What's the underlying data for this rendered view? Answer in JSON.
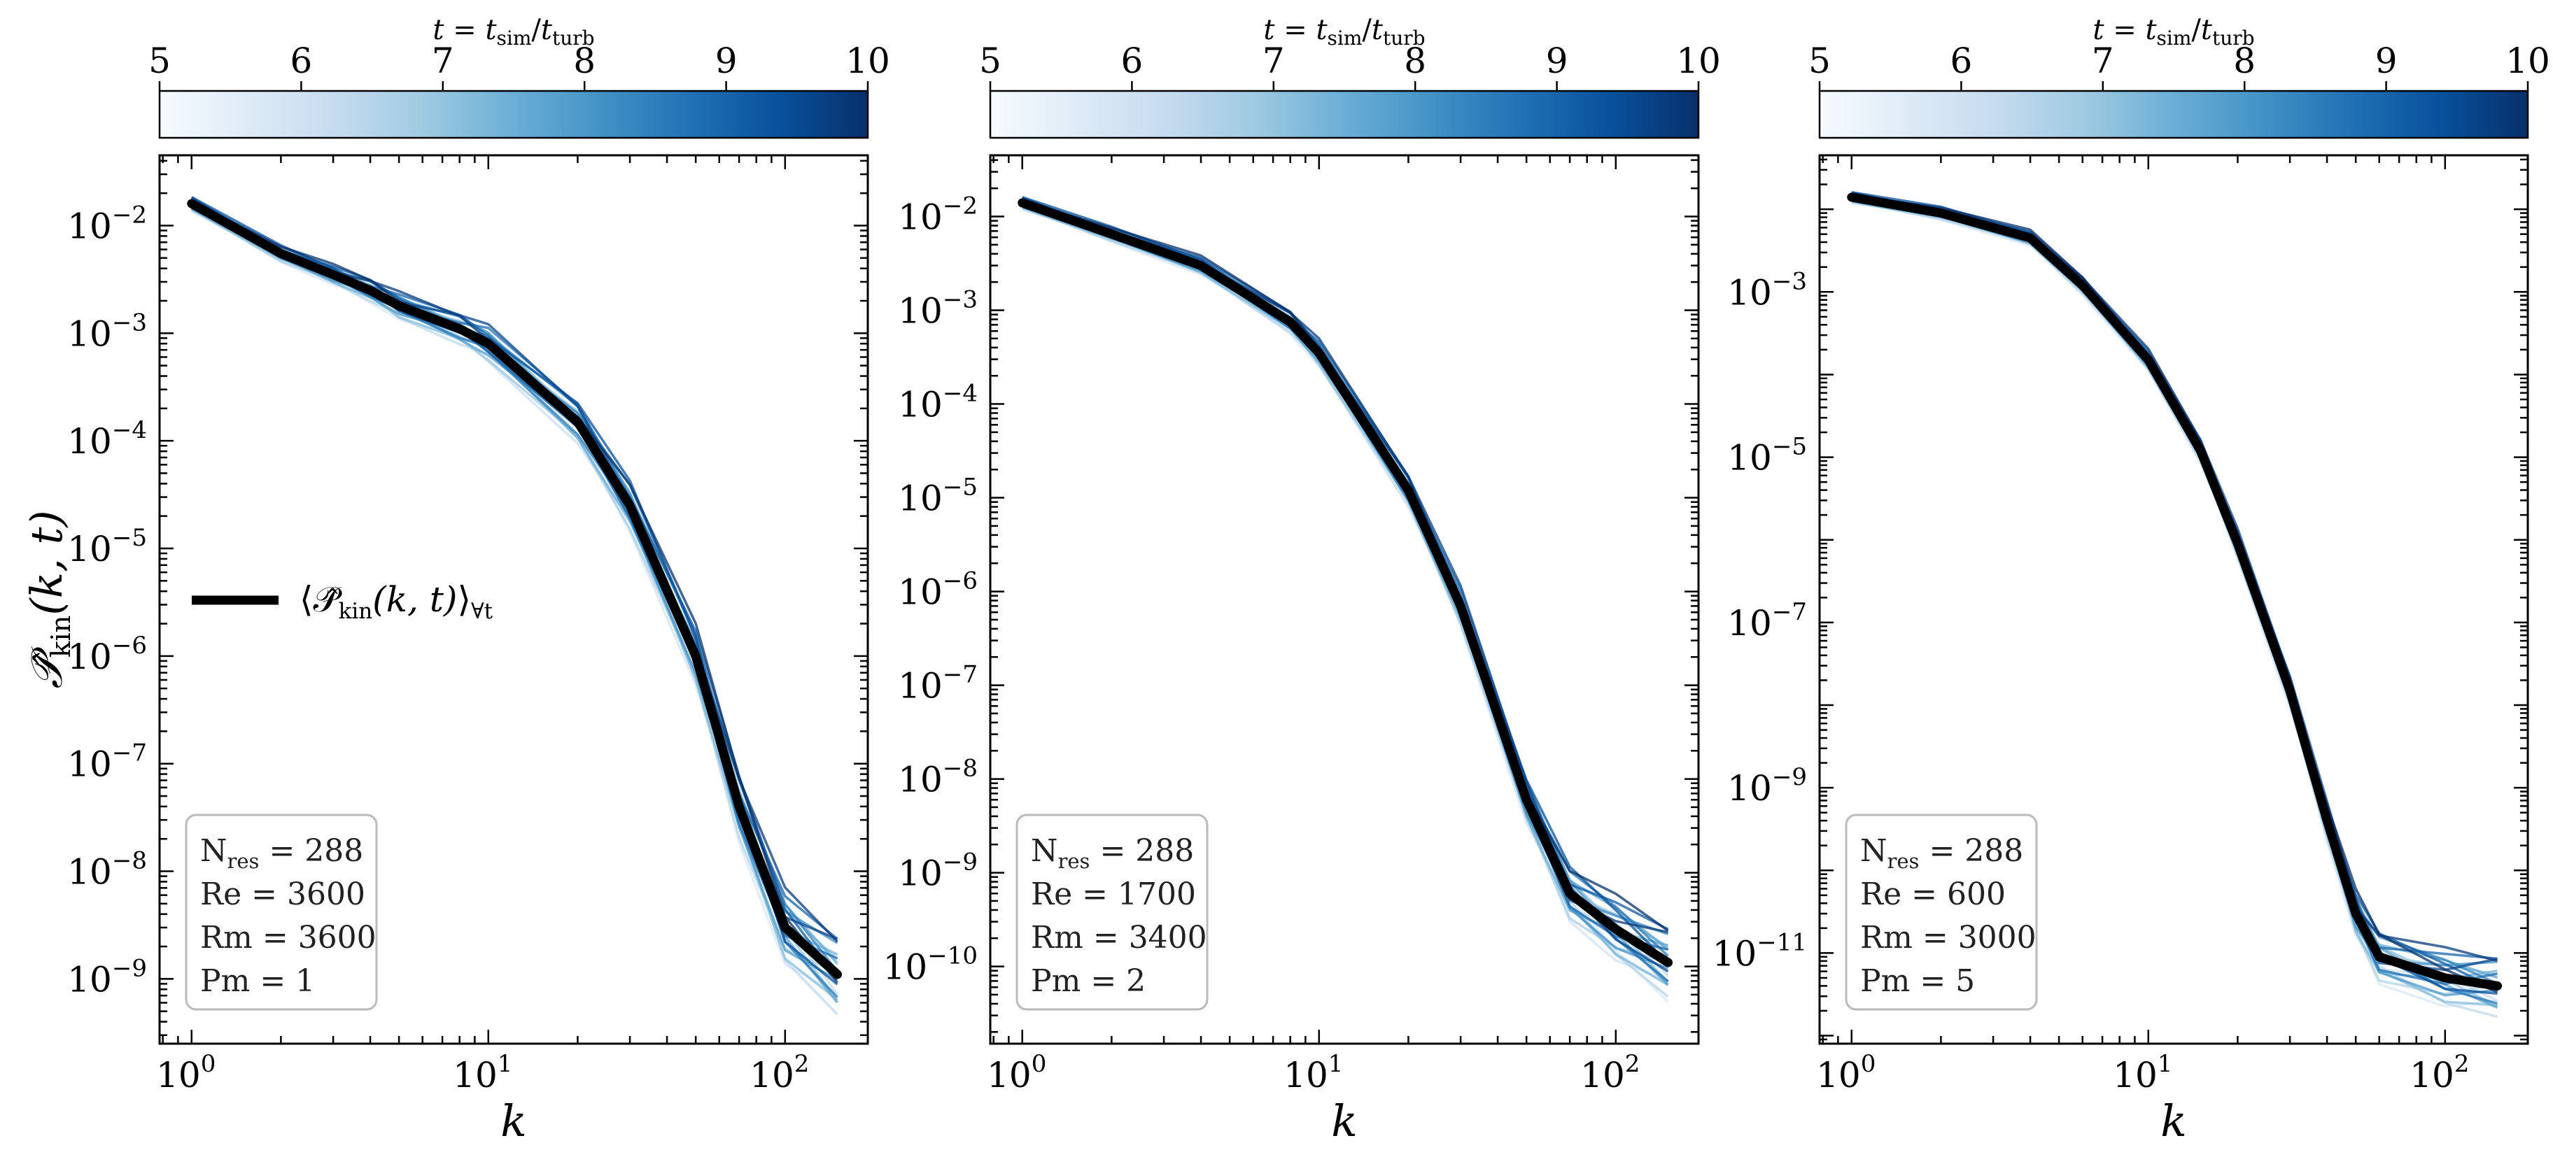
{
  "chart_data": [
    {
      "type": "line",
      "xlabel": "k",
      "ylabel": "𝒫̂kin(k, t)",
      "xscale": "log",
      "yscale": "log",
      "xlim": [
        0.78,
        190
      ],
      "ylim": [
        2.5e-10,
        0.045
      ],
      "x_ticks": [
        1,
        10,
        100
      ],
      "y_ticks": [
        1e-09,
        1e-08,
        1e-07,
        1e-06,
        1e-05,
        0.0001,
        0.001,
        0.01
      ],
      "colorbar": {
        "label": "t = tsim/tturb",
        "range": [
          5,
          10
        ],
        "ticks": [
          5,
          6,
          7,
          8,
          9,
          10
        ],
        "colormap": "Blues"
      },
      "legend": {
        "position": "center-left",
        "entries": [
          "⟨𝒫̂kin(k, t)⟩∀t"
        ]
      },
      "annotation": [
        "Nres = 288",
        "Re = 3600",
        "Rm = 3600",
        "Pm = 1"
      ],
      "mean_series": {
        "k": [
          1,
          2,
          3,
          4,
          5,
          8,
          10,
          20,
          30,
          50,
          70,
          100,
          150
        ],
        "y": [
          0.016,
          0.0055,
          0.0035,
          0.0025,
          0.0018,
          0.0011,
          0.0008,
          0.00015,
          2.5e-05,
          1e-06,
          4e-08,
          3e-09,
          1.1e-09
        ]
      }
    },
    {
      "type": "line",
      "xlabel": "k",
      "xscale": "log",
      "yscale": "log",
      "xlim": [
        0.78,
        190
      ],
      "ylim": [
        1.5e-11,
        0.045
      ],
      "x_ticks": [
        1,
        10,
        100
      ],
      "y_ticks": [
        1e-10,
        1e-09,
        1e-08,
        1e-07,
        1e-06,
        1e-05,
        0.0001,
        0.001,
        0.01
      ],
      "colorbar": {
        "label": "t = tsim/tturb",
        "range": [
          5,
          10
        ],
        "ticks": [
          5,
          6,
          7,
          8,
          9,
          10
        ],
        "colormap": "Blues"
      },
      "annotation": [
        "Nres = 288",
        "Re = 1700",
        "Rm = 3400",
        "Pm = 2"
      ],
      "mean_series": {
        "k": [
          1,
          2,
          4,
          8,
          10,
          20,
          30,
          50,
          70,
          100,
          150
        ],
        "y": [
          0.014,
          0.0065,
          0.003,
          0.00075,
          0.00035,
          1.2e-05,
          7e-07,
          6e-09,
          6e-10,
          2.5e-10,
          1.1e-10
        ]
      }
    },
    {
      "type": "line",
      "xlabel": "k",
      "xscale": "log",
      "yscale": "log",
      "xlim": [
        0.78,
        190
      ],
      "ylim": [
        8e-13,
        0.045
      ],
      "x_ticks": [
        1,
        10,
        100
      ],
      "y_ticks": [
        1e-11,
        1e-09,
        1e-07,
        1e-05,
        0.001
      ],
      "colorbar": {
        "label": "t = tsim/tturb",
        "range": [
          5,
          10
        ],
        "ticks": [
          5,
          6,
          7,
          8,
          9,
          10
        ],
        "colormap": "Blues"
      },
      "annotation": [
        "Nres = 288",
        "Re = 600",
        "Rm = 3000",
        "Pm = 5"
      ],
      "mean_series": {
        "k": [
          1,
          2,
          4,
          6,
          10,
          15,
          20,
          30,
          40,
          50,
          60,
          100,
          150
        ],
        "y": [
          0.014,
          0.009,
          0.0045,
          0.0012,
          0.00015,
          1.2e-05,
          9e-07,
          1.5e-08,
          4e-10,
          3e-11,
          9e-12,
          5e-12,
          4e-12
        ]
      }
    }
  ]
}
